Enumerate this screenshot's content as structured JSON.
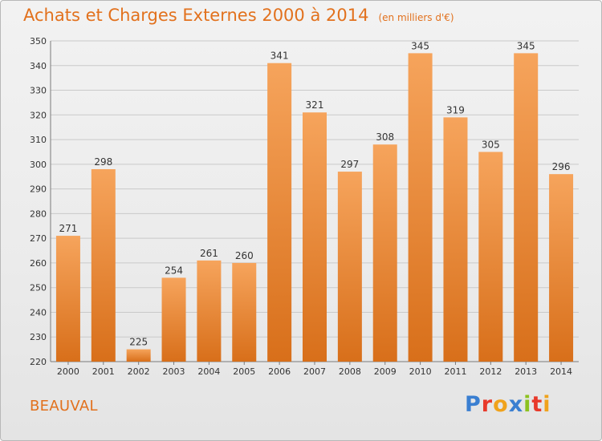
{
  "title": "Achats et Charges Externes 2000 à 2014",
  "unit": "(en milliers d'€)",
  "commune": "BEAUVAL",
  "logo": "Proxiti",
  "colors": {
    "accent": "#e2711d",
    "bar_top": "#f6a45c",
    "bar_bottom": "#d86f1a",
    "logo": [
      "#3a7fd1",
      "#e8392a",
      "#f0a21b",
      "#3a7fd1",
      "#8dc21f",
      "#e8392a",
      "#f0a21b"
    ]
  },
  "chart_data": {
    "type": "bar",
    "categories": [
      "2000",
      "2001",
      "2002",
      "2003",
      "2004",
      "2005",
      "2006",
      "2007",
      "2008",
      "2009",
      "2010",
      "2011",
      "2012",
      "2013",
      "2014"
    ],
    "values": [
      271,
      298,
      225,
      254,
      261,
      260,
      341,
      321,
      297,
      308,
      345,
      319,
      305,
      345,
      296
    ],
    "ylim": [
      220,
      350
    ],
    "yticks": [
      220,
      230,
      240,
      250,
      260,
      270,
      280,
      290,
      300,
      310,
      320,
      330,
      340,
      350
    ],
    "grid": true,
    "title": "Achats et Charges Externes 2000 à 2014",
    "xlabel": "",
    "ylabel": ""
  }
}
